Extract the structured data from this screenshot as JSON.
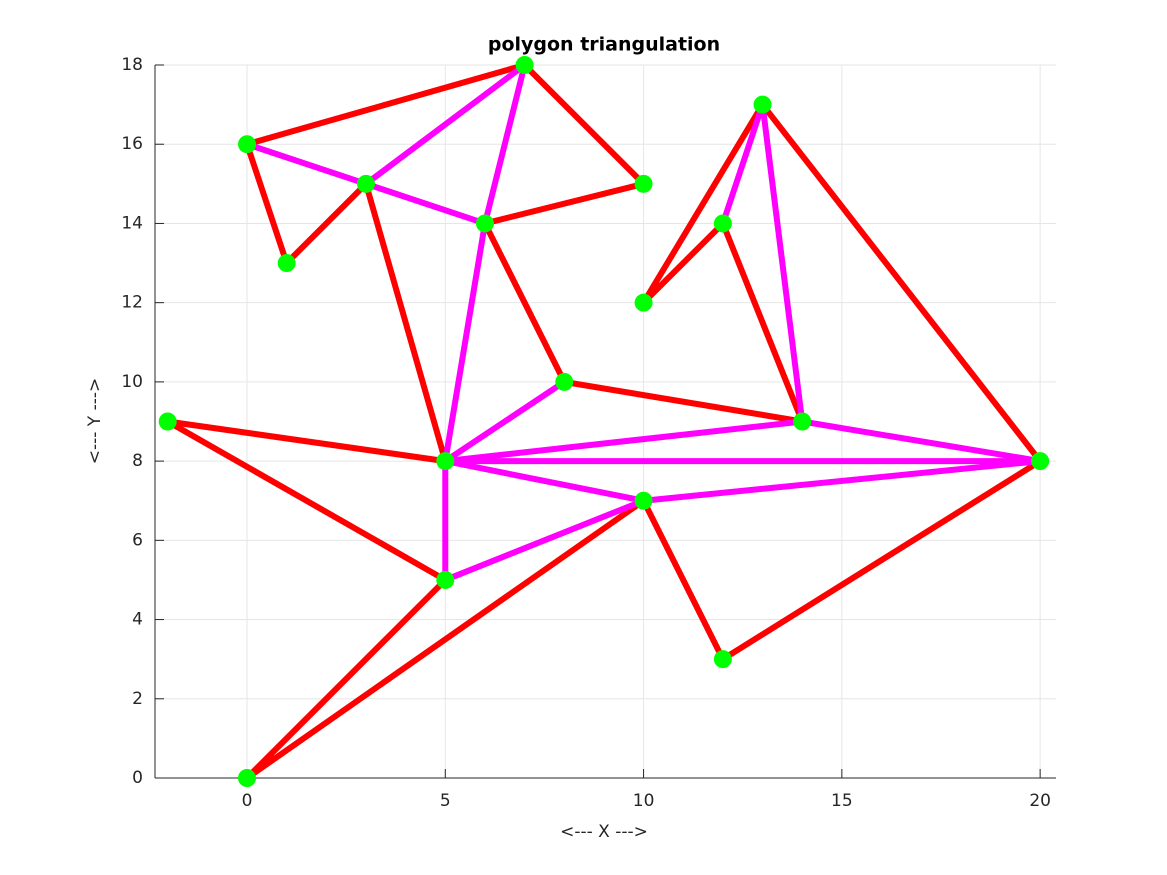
{
  "chart_data": {
    "type": "polygon-triangulation",
    "title": "polygon triangulation",
    "x_label": "<--- X --->",
    "y_label": "<--- Y --->",
    "xlim": [
      -2.32,
      20.4
    ],
    "ylim": [
      0,
      18
    ],
    "xticks": [
      0,
      5,
      10,
      15,
      20
    ],
    "yticks": [
      0,
      2,
      4,
      6,
      8,
      10,
      12,
      14,
      16,
      18
    ],
    "grid": true,
    "boundary": {
      "color": "#ff0000",
      "x": [
        0,
        5,
        -2,
        5,
        3,
        1,
        0,
        7,
        10,
        6,
        8,
        14,
        12,
        10,
        13,
        20,
        12,
        10,
        0
      ],
      "y": [
        0,
        5,
        9,
        8,
        15,
        13,
        16,
        18,
        15,
        14,
        10,
        9,
        14,
        12,
        17,
        8,
        3,
        7,
        0
      ]
    },
    "diagonals": {
      "color": "#ff00ff",
      "segments": [
        [
          0,
          16,
          3,
          15
        ],
        [
          3,
          15,
          6,
          14
        ],
        [
          3,
          15,
          7,
          18
        ],
        [
          7,
          18,
          6,
          14
        ],
        [
          6,
          14,
          5,
          8
        ],
        [
          5,
          8,
          8,
          10
        ],
        [
          5,
          8,
          14,
          9
        ],
        [
          5,
          8,
          20,
          8
        ],
        [
          5,
          8,
          10,
          7
        ],
        [
          5,
          8,
          5,
          5
        ],
        [
          5,
          5,
          10,
          7
        ],
        [
          10,
          7,
          20,
          8
        ],
        [
          14,
          9,
          20,
          8
        ],
        [
          14,
          9,
          13,
          17
        ],
        [
          13,
          17,
          12,
          14
        ]
      ]
    },
    "vertices": {
      "color": "#00ff00",
      "x": [
        0,
        5,
        -2,
        5,
        3,
        1,
        0,
        7,
        10,
        6,
        8,
        14,
        12,
        10,
        13,
        20,
        12,
        10
      ],
      "y": [
        0,
        5,
        9,
        8,
        15,
        13,
        16,
        18,
        15,
        14,
        10,
        9,
        14,
        12,
        17,
        8,
        3,
        7
      ]
    }
  }
}
